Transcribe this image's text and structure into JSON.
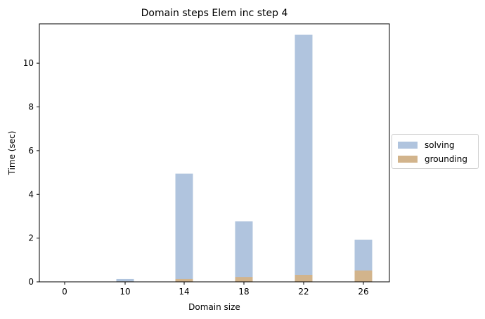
{
  "chart_data": {
    "type": "bar",
    "title": "Domain steps Elem inc step 4",
    "xlabel": "Domain size",
    "ylabel": "Time (sec)",
    "categories": [
      "0",
      "10",
      "14",
      "18",
      "22",
      "26"
    ],
    "ylim": [
      0,
      11.8
    ],
    "yticks": [
      "0",
      "2",
      "4",
      "6",
      "8",
      "10"
    ],
    "stacked": false,
    "series": [
      {
        "name": "solving",
        "color": "#b0c4de",
        "values": [
          0,
          0.13,
          4.95,
          2.77,
          11.3,
          1.93
        ]
      },
      {
        "name": "grounding",
        "color": "#d2b48c",
        "values": [
          0,
          0.02,
          0.13,
          0.22,
          0.32,
          0.52
        ]
      }
    ],
    "legend": "right",
    "grid": false
  }
}
